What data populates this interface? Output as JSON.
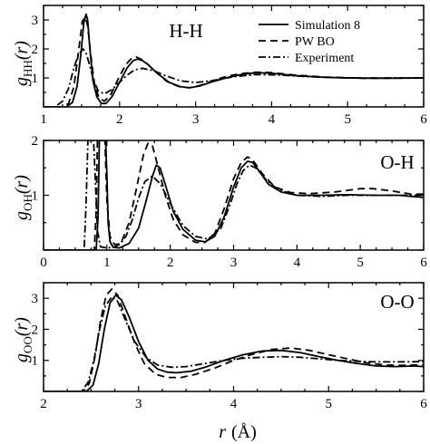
{
  "chart_data": [
    {
      "type": "line",
      "panel_label": "H-H",
      "ylabel_main": "g",
      "ylabel_sub": "HH",
      "ylabel_arg": "(r)",
      "xlim": [
        1,
        6
      ],
      "ylim": [
        0,
        3.5
      ],
      "xticks": [
        1,
        2,
        3,
        4,
        5,
        6
      ],
      "yticks": [
        1,
        2,
        3
      ],
      "legend_position": "top-right",
      "series": [
        {
          "name": "Simulation 8",
          "style": "solid",
          "x": [
            1.0,
            1.3,
            1.38,
            1.44,
            1.49,
            1.53,
            1.56,
            1.58,
            1.61,
            1.65,
            1.7,
            1.76,
            1.82,
            1.9,
            2.0,
            2.1,
            2.18,
            2.24,
            2.3,
            2.38,
            2.5,
            2.65,
            2.8,
            2.92,
            3.05,
            3.2,
            3.4,
            3.6,
            3.8,
            4.0,
            4.3,
            4.7,
            5.2,
            5.6,
            6.0
          ],
          "y": [
            0,
            0,
            0.15,
            0.7,
            1.8,
            2.9,
            3.2,
            3.0,
            2.0,
            0.9,
            0.35,
            0.12,
            0.12,
            0.35,
            0.85,
            1.35,
            1.6,
            1.65,
            1.6,
            1.45,
            1.15,
            0.85,
            0.7,
            0.66,
            0.72,
            0.85,
            1.0,
            1.12,
            1.18,
            1.16,
            1.08,
            1.02,
            0.99,
            0.99,
            1.0
          ]
        },
        {
          "name": "PW BO",
          "style": "dashed",
          "x": [
            1.0,
            1.25,
            1.33,
            1.4,
            1.46,
            1.51,
            1.55,
            1.58,
            1.62,
            1.67,
            1.73,
            1.8,
            1.88,
            1.98,
            2.08,
            2.16,
            2.22,
            2.28,
            2.36,
            2.48,
            2.62,
            2.78,
            2.92,
            3.06,
            3.22,
            3.4,
            3.6,
            3.8,
            4.0,
            4.3,
            4.7,
            5.2,
            5.6,
            6.0
          ],
          "y": [
            0,
            0,
            0.12,
            0.7,
            1.9,
            2.95,
            3.1,
            2.8,
            1.8,
            0.8,
            0.3,
            0.2,
            0.4,
            0.95,
            1.45,
            1.68,
            1.72,
            1.65,
            1.5,
            1.2,
            0.88,
            0.7,
            0.66,
            0.74,
            0.9,
            1.05,
            1.15,
            1.2,
            1.18,
            1.1,
            1.03,
            0.99,
            0.99,
            1.0
          ]
        },
        {
          "name": "Experiment",
          "style": "dashdot",
          "x": [
            1.0,
            1.15,
            1.25,
            1.33,
            1.4,
            1.46,
            1.52,
            1.56,
            1.6,
            1.66,
            1.72,
            1.8,
            1.9,
            2.0,
            2.1,
            2.2,
            2.3,
            2.45,
            2.6,
            2.8,
            3.0,
            3.2,
            3.5,
            3.8,
            4.1,
            4.5,
            5.0,
            5.5,
            6.0
          ],
          "y": [
            0,
            0,
            0.2,
            0.65,
            1.35,
            1.8,
            2.0,
            1.85,
            1.5,
            0.9,
            0.55,
            0.45,
            0.6,
            0.85,
            1.1,
            1.28,
            1.33,
            1.25,
            1.08,
            0.9,
            0.84,
            0.9,
            1.04,
            1.12,
            1.1,
            1.04,
            1.0,
            1.0,
            1.0
          ]
        }
      ]
    },
    {
      "type": "line",
      "panel_label": "O-H",
      "ylabel_main": "g",
      "ylabel_sub": "OH",
      "ylabel_arg": "(r)",
      "xlim": [
        0,
        6
      ],
      "ylim": [
        0,
        2
      ],
      "xticks": [
        0,
        1,
        2,
        3,
        4,
        5,
        6
      ],
      "yticks": [
        1,
        2
      ],
      "series": [
        {
          "name": "Simulation 8",
          "style": "solid",
          "x": [
            0.0,
            0.83,
            0.86,
            0.88,
            0.9,
            0.93,
            0.96,
            0.98,
            1.0,
            1.02,
            1.05,
            1.1,
            1.2,
            1.35,
            1.5,
            1.62,
            1.72,
            1.78,
            1.84,
            1.92,
            2.05,
            2.2,
            2.4,
            2.55,
            2.7,
            2.85,
            3.0,
            3.12,
            3.22,
            3.3,
            3.4,
            3.55,
            3.75,
            4.0,
            4.4,
            4.8,
            5.2,
            5.6,
            6.0
          ],
          "y": [
            0,
            0,
            0.6,
            2.0,
            2.0,
            2.0,
            2.0,
            2.0,
            1.4,
            0.5,
            0.15,
            0.05,
            0.04,
            0.12,
            0.4,
            0.9,
            1.35,
            1.55,
            1.5,
            1.2,
            0.7,
            0.38,
            0.18,
            0.15,
            0.25,
            0.6,
            1.15,
            1.5,
            1.62,
            1.6,
            1.45,
            1.2,
            1.06,
            1.0,
            1.0,
            1.01,
            1.0,
            1.0,
            0.96
          ]
        },
        {
          "name": "PW BO",
          "style": "dashed",
          "x": [
            0.0,
            0.8,
            0.83,
            0.85,
            0.88,
            0.91,
            0.94,
            0.97,
            1.0,
            1.05,
            1.12,
            1.22,
            1.35,
            1.48,
            1.58,
            1.65,
            1.72,
            1.8,
            1.92,
            2.05,
            2.2,
            2.4,
            2.55,
            2.7,
            2.85,
            3.0,
            3.12,
            3.22,
            3.3,
            3.45,
            3.65,
            3.9,
            4.2,
            4.6,
            5.0,
            5.2,
            5.5,
            5.8,
            6.0
          ],
          "y": [
            0,
            0,
            0.7,
            2.0,
            2.0,
            2.0,
            2.0,
            2.0,
            0.9,
            0.25,
            0.1,
            0.12,
            0.5,
            1.2,
            1.75,
            1.95,
            1.9,
            1.55,
            1.0,
            0.55,
            0.28,
            0.14,
            0.14,
            0.3,
            0.75,
            1.3,
            1.6,
            1.7,
            1.65,
            1.4,
            1.15,
            1.05,
            1.03,
            1.06,
            1.12,
            1.12,
            1.08,
            1.02,
            1.02
          ]
        },
        {
          "name": "Experiment",
          "style": "dashdot",
          "x": [
            0.0,
            0.64,
            0.67,
            0.7,
            0.73,
            0.76,
            0.79,
            0.82,
            0.85,
            0.9,
            1.0,
            1.1,
            1.2,
            1.3,
            1.4,
            1.5,
            1.6,
            1.72,
            1.85,
            2.0,
            2.2,
            2.4,
            2.6,
            2.8,
            2.95,
            3.05,
            3.15,
            3.25,
            3.35,
            3.5,
            3.7,
            4.0,
            4.4,
            4.8,
            5.2,
            5.6,
            6.0
          ],
          "y": [
            0,
            0,
            0.8,
            2.0,
            2.0,
            2.0,
            2.0,
            1.2,
            0.35,
            0.06,
            0.04,
            0.05,
            0.1,
            0.25,
            0.55,
            0.95,
            1.25,
            1.35,
            1.2,
            0.85,
            0.45,
            0.25,
            0.2,
            0.4,
            0.85,
            1.2,
            1.45,
            1.55,
            1.5,
            1.3,
            1.1,
            1.0,
            0.98,
            1.0,
            1.0,
            1.0,
            1.0
          ]
        }
      ]
    },
    {
      "type": "line",
      "panel_label": "O-O",
      "ylabel_main": "g",
      "ylabel_sub": "OO",
      "ylabel_arg": "(r)",
      "xlim": [
        2,
        6
      ],
      "ylim": [
        0,
        3.5
      ],
      "xticks": [
        2,
        3,
        4,
        5,
        6
      ],
      "yticks": [
        1,
        2,
        3
      ],
      "xlabel_main": "r",
      "xlabel_unit": "(Å)",
      "series": [
        {
          "name": "Simulation 8",
          "style": "solid",
          "x": [
            2.0,
            2.45,
            2.52,
            2.58,
            2.64,
            2.7,
            2.76,
            2.82,
            2.9,
            3.0,
            3.1,
            3.2,
            3.3,
            3.4,
            3.55,
            3.7,
            3.9,
            4.1,
            4.3,
            4.5,
            4.7,
            4.9,
            5.1,
            5.3,
            5.5,
            5.7,
            5.9,
            6.0
          ],
          "y": [
            0,
            0,
            0.2,
            0.9,
            2.0,
            2.85,
            3.1,
            2.95,
            2.4,
            1.6,
            1.0,
            0.72,
            0.62,
            0.6,
            0.65,
            0.78,
            1.0,
            1.18,
            1.3,
            1.32,
            1.25,
            1.12,
            1.0,
            0.9,
            0.82,
            0.8,
            0.82,
            0.8
          ]
        },
        {
          "name": "PW BO",
          "style": "dashed",
          "x": [
            2.0,
            2.42,
            2.48,
            2.54,
            2.6,
            2.66,
            2.72,
            2.78,
            2.86,
            2.96,
            3.06,
            3.18,
            3.3,
            3.45,
            3.6,
            3.8,
            4.0,
            4.2,
            4.4,
            4.6,
            4.8,
            5.0,
            5.2,
            5.4,
            5.6,
            5.8,
            6.0
          ],
          "y": [
            0,
            0,
            0.25,
            1.1,
            2.3,
            3.1,
            3.3,
            3.1,
            2.4,
            1.55,
            0.9,
            0.55,
            0.45,
            0.45,
            0.55,
            0.75,
            1.0,
            1.2,
            1.35,
            1.4,
            1.32,
            1.18,
            1.05,
            0.92,
            0.85,
            0.84,
            0.86
          ]
        },
        {
          "name": "Experiment",
          "style": "dashdot",
          "x": [
            2.0,
            2.4,
            2.47,
            2.53,
            2.59,
            2.65,
            2.72,
            2.78,
            2.86,
            2.96,
            3.08,
            3.2,
            3.35,
            3.5,
            3.7,
            3.9,
            4.1,
            4.3,
            4.5,
            4.7,
            4.9,
            5.1,
            5.3,
            5.5,
            5.7,
            6.0
          ],
          "y": [
            0,
            0,
            0.3,
            1.0,
            2.0,
            2.75,
            3.05,
            2.9,
            2.3,
            1.6,
            1.1,
            0.85,
            0.78,
            0.8,
            0.9,
            1.0,
            1.07,
            1.1,
            1.12,
            1.1,
            1.05,
            1.0,
            0.97,
            0.95,
            0.95,
            0.96
          ]
        }
      ]
    }
  ]
}
